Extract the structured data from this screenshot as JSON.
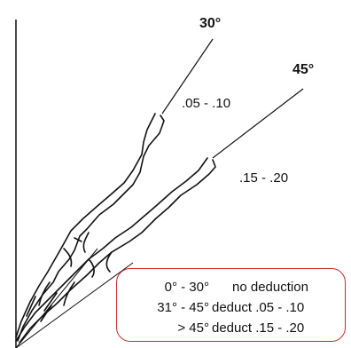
{
  "labels": {
    "angle_30": "30°",
    "angle_45": "45°",
    "range_30": ".05 - .10",
    "range_45": ".15 - .20"
  },
  "deduction_table": [
    {
      "range": "0° - 30°",
      "deduction": "no deduction"
    },
    {
      "range": "31° - 45°",
      "deduction": "deduct .05 - .10"
    },
    {
      "range": "> 45°",
      "deduction": "deduct .15 - .20"
    }
  ],
  "colors": {
    "line": "#111111",
    "table_border": "#d0282c"
  }
}
